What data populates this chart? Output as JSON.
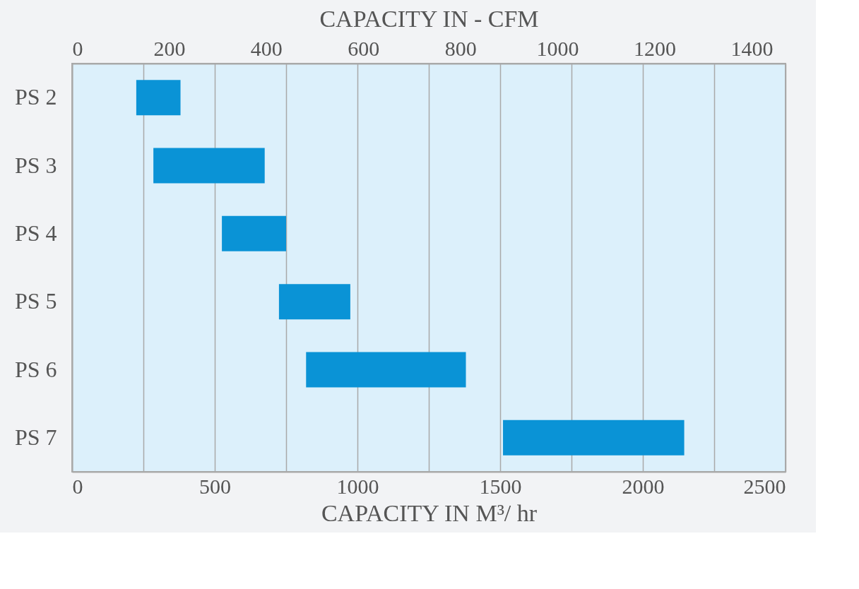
{
  "chart_data": {
    "type": "bar",
    "orientation": "horizontal",
    "categories": [
      "PS 2",
      "PS 3",
      "PS 4",
      "PS 5",
      "PS 6",
      "PS 7"
    ],
    "base": [
      225,
      285,
      525,
      725,
      820,
      1510
    ],
    "values": [
      155,
      390,
      225,
      250,
      560,
      635
    ],
    "color": "#0a93d6",
    "xlabel": "CAPACITY IN M³/ hr",
    "x2label": "CAPACITY IN -  CFM",
    "xlim": [
      0,
      2500
    ],
    "xticks": [
      0,
      {
        "value": 250,
        "label": null
      },
      500,
      {
        "value": 750,
        "label": null
      },
      1000,
      {
        "value": 1250,
        "label": null
      },
      1500,
      {
        "value": 1750,
        "label": null
      },
      2000,
      {
        "value": 2250,
        "label": null
      },
      2500
    ],
    "x2lim": [
      0,
      1470
    ],
    "x2ticks": [
      0,
      200,
      400,
      600,
      800,
      1000,
      1200,
      1400
    ],
    "grid": "x"
  }
}
